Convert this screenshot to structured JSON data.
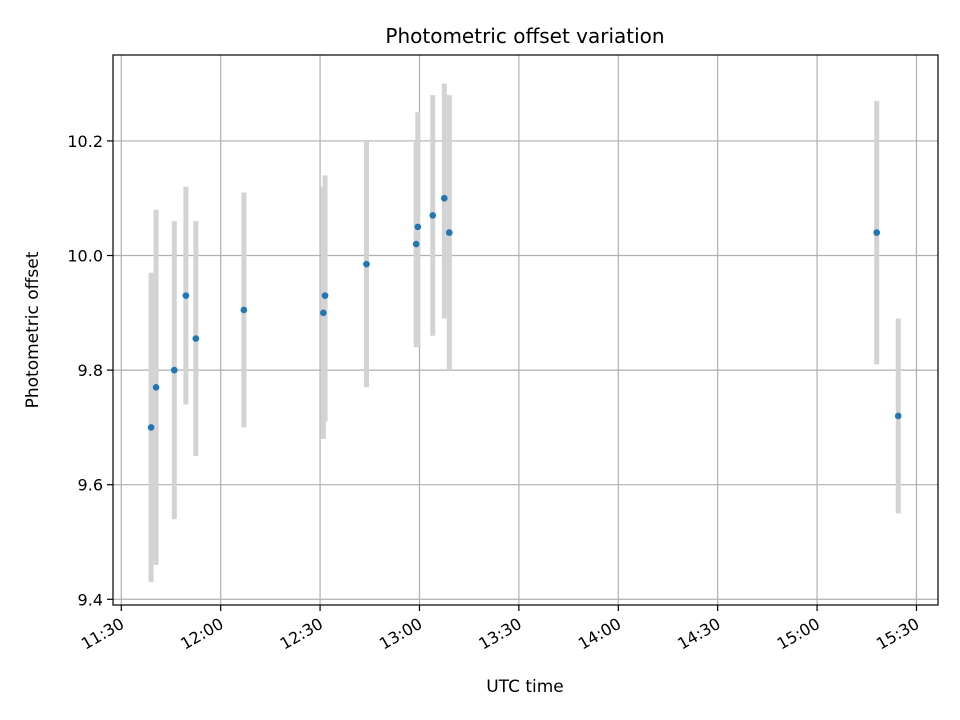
{
  "chart_data": {
    "type": "scatter",
    "title": "Photometric offset variation",
    "xlabel": "UTC time",
    "ylabel": "Photometric offset",
    "xlim": [
      "11:27:30",
      "15:36:30"
    ],
    "ylim": [
      9.39,
      10.35
    ],
    "x_ticks": [
      "11:30",
      "12:00",
      "12:30",
      "13:00",
      "13:30",
      "14:00",
      "14:30",
      "15:00",
      "15:30"
    ],
    "y_ticks": [
      "9.4",
      "9.6",
      "9.8",
      "10.0",
      "10.2"
    ],
    "grid": true,
    "marker_color": "#1f77b4",
    "errorbar_color": "#d3d3d3",
    "points": [
      {
        "x": "11:39:00",
        "y": 9.7,
        "y_low": 9.43,
        "y_high": 9.97
      },
      {
        "x": "11:40:30",
        "y": 9.77,
        "y_low": 9.46,
        "y_high": 10.08
      },
      {
        "x": "11:46:00",
        "y": 9.8,
        "y_low": 9.54,
        "y_high": 10.06
      },
      {
        "x": "11:49:30",
        "y": 9.93,
        "y_low": 9.74,
        "y_high": 10.12
      },
      {
        "x": "11:52:30",
        "y": 9.855,
        "y_low": 9.65,
        "y_high": 10.06
      },
      {
        "x": "12:07:00",
        "y": 9.905,
        "y_low": 9.7,
        "y_high": 10.11
      },
      {
        "x": "12:31:00",
        "y": 9.9,
        "y_low": 9.68,
        "y_high": 10.12
      },
      {
        "x": "12:31:30",
        "y": 9.93,
        "y_low": 9.71,
        "y_high": 10.14
      },
      {
        "x": "12:44:00",
        "y": 9.985,
        "y_low": 9.77,
        "y_high": 10.2
      },
      {
        "x": "12:59:00",
        "y": 10.02,
        "y_low": 9.84,
        "y_high": 10.2
      },
      {
        "x": "12:59:30",
        "y": 10.05,
        "y_low": 9.84,
        "y_high": 10.25
      },
      {
        "x": "13:04:00",
        "y": 10.07,
        "y_low": 9.86,
        "y_high": 10.28
      },
      {
        "x": "13:07:30",
        "y": 10.1,
        "y_low": 9.89,
        "y_high": 10.3
      },
      {
        "x": "13:09:00",
        "y": 10.04,
        "y_low": 9.8,
        "y_high": 10.28
      },
      {
        "x": "15:18:00",
        "y": 10.04,
        "y_low": 9.81,
        "y_high": 10.27
      },
      {
        "x": "15:24:30",
        "y": 9.72,
        "y_low": 9.55,
        "y_high": 9.89
      }
    ]
  }
}
